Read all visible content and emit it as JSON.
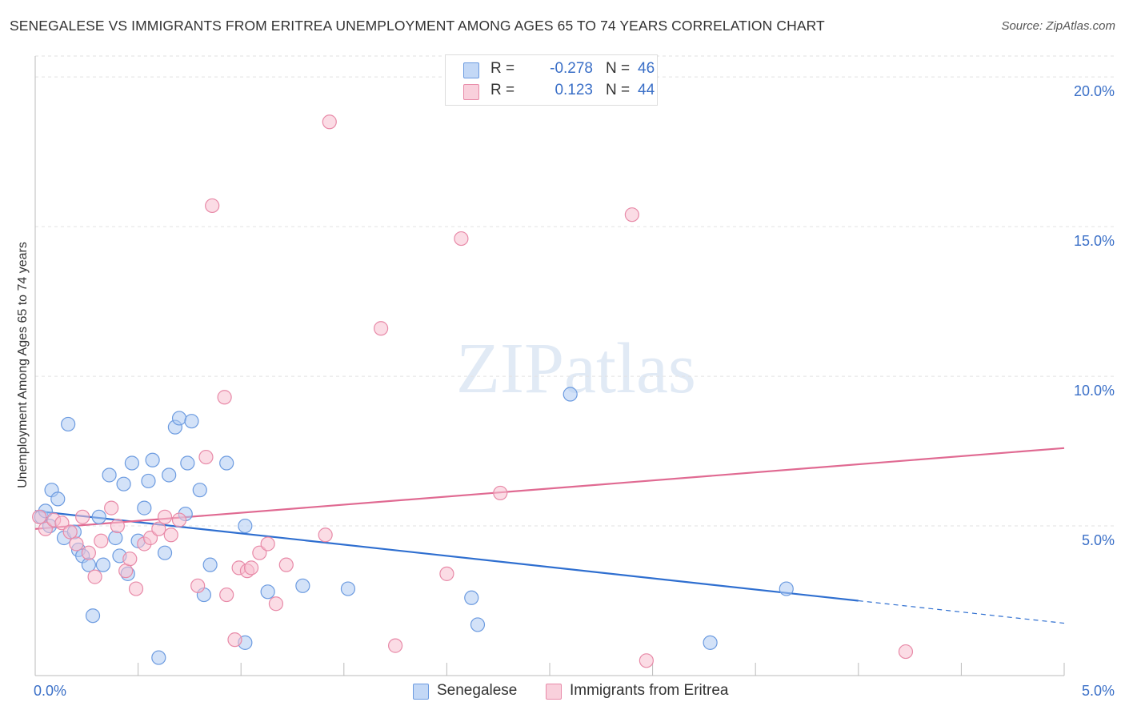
{
  "chart_data": {
    "type": "scatter",
    "title": "SENEGALESE VS IMMIGRANTS FROM ERITREA UNEMPLOYMENT AMONG AGES 65 TO 74 YEARS CORRELATION CHART",
    "source": "Source: ZipAtlas.com",
    "ylabel": "Unemployment Among Ages 65 to 74 years",
    "xlabel": "",
    "xlim": [
      0,
      5
    ],
    "ylim": [
      0,
      20.7
    ],
    "x_tick_labels": [
      "0.0%",
      "5.0%"
    ],
    "y_tick_values": [
      5,
      10,
      15,
      20
    ],
    "y_tick_labels": [
      "5.0%",
      "10.0%",
      "15.0%",
      "20.0%"
    ],
    "grid": true,
    "watermark": "ZIPatlas",
    "legend": {
      "position": "top-center",
      "r_label": "R =",
      "n_label": "N =",
      "entries": [
        {
          "name": "Senegalese",
          "r": "-0.278",
          "n": "46"
        },
        {
          "name": "Immigrants from Eritrea",
          "r": "0.123",
          "n": "44"
        }
      ]
    },
    "series": [
      {
        "name": "Senegalese",
        "fill": "#aecbf3",
        "stroke": "#6c9be0",
        "line_color": "#2f6fd0",
        "trend": {
          "x0": 0.0,
          "y0": 5.5,
          "x1": 4.0,
          "y1": 2.5,
          "dash_to_x": 5.0,
          "dash_to_y": 1.75
        },
        "points": [
          [
            0.03,
            5.3
          ],
          [
            0.05,
            5.5
          ],
          [
            0.08,
            6.2
          ],
          [
            0.11,
            5.9
          ],
          [
            0.14,
            4.6
          ],
          [
            0.16,
            8.4
          ],
          [
            0.19,
            4.8
          ],
          [
            0.21,
            4.2
          ],
          [
            0.23,
            4.0
          ],
          [
            0.26,
            3.7
          ],
          [
            0.28,
            2.0
          ],
          [
            0.31,
            5.3
          ],
          [
            0.33,
            3.7
          ],
          [
            0.36,
            6.7
          ],
          [
            0.39,
            4.6
          ],
          [
            0.41,
            4.0
          ],
          [
            0.43,
            6.4
          ],
          [
            0.45,
            3.4
          ],
          [
            0.47,
            7.1
          ],
          [
            0.5,
            4.5
          ],
          [
            0.53,
            5.6
          ],
          [
            0.55,
            6.5
          ],
          [
            0.57,
            7.2
          ],
          [
            0.6,
            0.6
          ],
          [
            0.63,
            4.1
          ],
          [
            0.65,
            6.7
          ],
          [
            0.68,
            8.3
          ],
          [
            0.7,
            8.6
          ],
          [
            0.73,
            5.4
          ],
          [
            0.74,
            7.1
          ],
          [
            0.76,
            8.5
          ],
          [
            0.8,
            6.2
          ],
          [
            0.82,
            2.7
          ],
          [
            0.85,
            3.7
          ],
          [
            0.93,
            7.1
          ],
          [
            1.02,
            5.0
          ],
          [
            1.02,
            1.1
          ],
          [
            1.13,
            2.8
          ],
          [
            1.3,
            3.0
          ],
          [
            1.52,
            2.9
          ],
          [
            2.12,
            2.6
          ],
          [
            2.15,
            1.7
          ],
          [
            2.6,
            9.4
          ],
          [
            3.28,
            1.1
          ],
          [
            3.65,
            2.9
          ],
          [
            0.07,
            5.0
          ]
        ]
      },
      {
        "name": "Immigrants from Eritrea",
        "fill": "#f7bfd0",
        "stroke": "#e88aa8",
        "line_color": "#e06a92",
        "trend": {
          "x0": 0.0,
          "y0": 4.9,
          "x1": 5.0,
          "y1": 7.6
        },
        "points": [
          [
            0.05,
            4.9
          ],
          [
            0.09,
            5.2
          ],
          [
            0.13,
            5.1
          ],
          [
            0.17,
            4.8
          ],
          [
            0.2,
            4.4
          ],
          [
            0.23,
            5.3
          ],
          [
            0.26,
            4.1
          ],
          [
            0.29,
            3.3
          ],
          [
            0.32,
            4.5
          ],
          [
            0.37,
            5.6
          ],
          [
            0.4,
            5.0
          ],
          [
            0.44,
            3.5
          ],
          [
            0.46,
            3.9
          ],
          [
            0.49,
            2.9
          ],
          [
            0.53,
            4.4
          ],
          [
            0.56,
            4.6
          ],
          [
            0.6,
            4.9
          ],
          [
            0.63,
            5.3
          ],
          [
            0.66,
            4.7
          ],
          [
            0.7,
            5.2
          ],
          [
            0.79,
            3.0
          ],
          [
            0.83,
            7.3
          ],
          [
            0.86,
            15.7
          ],
          [
            0.92,
            9.3
          ],
          [
            0.93,
            2.7
          ],
          [
            0.97,
            1.2
          ],
          [
            0.99,
            3.6
          ],
          [
            1.03,
            3.5
          ],
          [
            1.05,
            3.6
          ],
          [
            1.09,
            4.1
          ],
          [
            1.13,
            4.4
          ],
          [
            1.17,
            2.4
          ],
          [
            1.22,
            3.7
          ],
          [
            1.41,
            4.7
          ],
          [
            1.43,
            18.5
          ],
          [
            1.68,
            11.6
          ],
          [
            1.75,
            1.0
          ],
          [
            2.0,
            3.4
          ],
          [
            2.07,
            14.6
          ],
          [
            2.26,
            6.1
          ],
          [
            2.97,
            0.5
          ],
          [
            2.9,
            15.4
          ],
          [
            4.23,
            0.8
          ],
          [
            0.02,
            5.3
          ]
        ]
      }
    ]
  }
}
